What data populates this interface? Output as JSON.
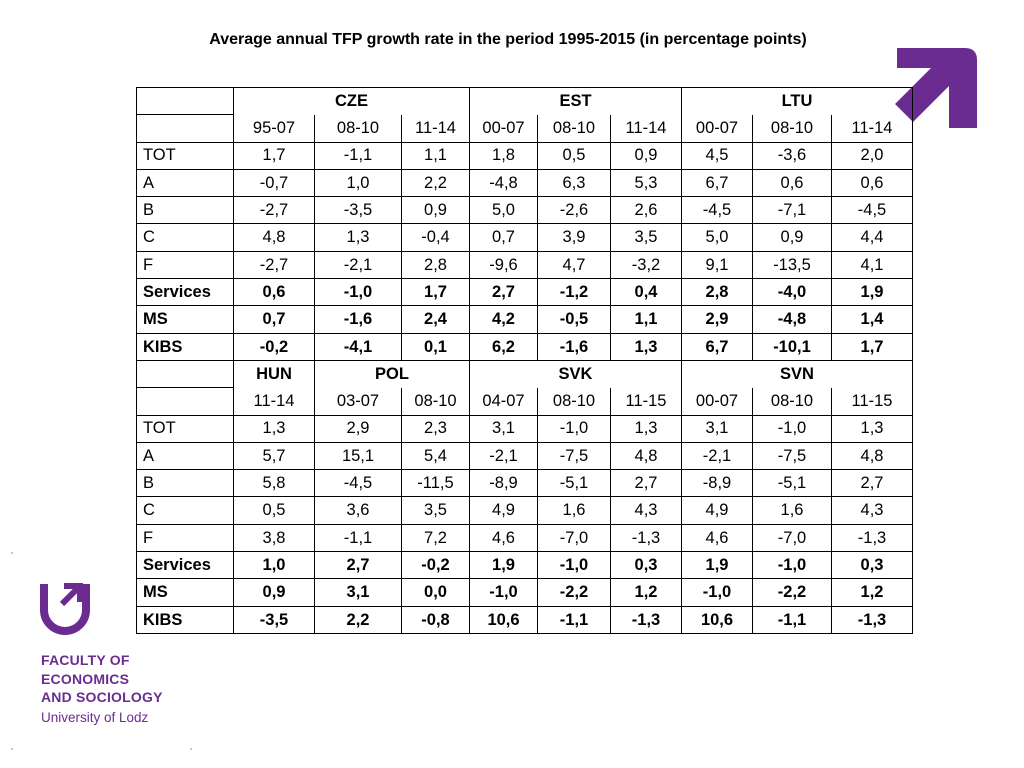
{
  "title": "Average annual TFP growth rate in the period 1995-2015 (in percentage points)",
  "table": {
    "panel1": {
      "groups": [
        {
          "name": "CZE",
          "periods": [
            "95-07",
            "08-10",
            "11-14"
          ]
        },
        {
          "name": "EST",
          "periods": [
            "00-07",
            "08-10",
            "11-14"
          ]
        },
        {
          "name": "LTU",
          "periods": [
            "00-07",
            "08-10",
            "11-14"
          ]
        }
      ],
      "rows": [
        {
          "label": "TOT",
          "values": [
            "1,7",
            "-1,1",
            "1,1",
            "1,8",
            "0,5",
            "0,9",
            "4,5",
            "-3,6",
            "2,0"
          ]
        },
        {
          "label": "A",
          "values": [
            "-0,7",
            "1,0",
            "2,2",
            "-4,8",
            "6,3",
            "5,3",
            "6,7",
            "0,6",
            "0,6"
          ]
        },
        {
          "label": "B",
          "values": [
            "-2,7",
            "-3,5",
            "0,9",
            "5,0",
            "-2,6",
            "2,6",
            "-4,5",
            "-7,1",
            "-4,5"
          ]
        },
        {
          "label": "C",
          "values": [
            "4,8",
            "1,3",
            "-0,4",
            "0,7",
            "3,9",
            "3,5",
            "5,0",
            "0,9",
            "4,4"
          ]
        },
        {
          "label": "F",
          "values": [
            "-2,7",
            "-2,1",
            "2,8",
            "-9,6",
            "4,7",
            "-3,2",
            "9,1",
            "-13,5",
            "4,1"
          ]
        },
        {
          "label": "Services",
          "values": [
            "0,6",
            "-1,0",
            "1,7",
            "2,7",
            "-1,2",
            "0,4",
            "2,8",
            "-4,0",
            "1,9"
          ]
        },
        {
          "label": "MS",
          "values": [
            "0,7",
            "-1,6",
            "2,4",
            "4,2",
            "-0,5",
            "1,1",
            "2,9",
            "-4,8",
            "1,4"
          ]
        },
        {
          "label": "KIBS",
          "values": [
            "-0,2",
            "-4,1",
            "0,1",
            "6,2",
            "-1,6",
            "1,3",
            "6,7",
            "-10,1",
            "1,7"
          ]
        }
      ]
    },
    "panel2": {
      "groups": [
        {
          "name": "HUN",
          "periods": [
            "11-14"
          ]
        },
        {
          "name": "POL",
          "periods": [
            "03-07",
            "08-10"
          ]
        },
        {
          "name": "SVK",
          "periods": [
            "04-07",
            "08-10",
            "11-15"
          ]
        },
        {
          "name": "SVN",
          "periods": [
            "00-07",
            "08-10",
            "11-15"
          ]
        }
      ],
      "rows": [
        {
          "label": "TOT",
          "values": [
            "1,3",
            "2,9",
            "2,3",
            "3,1",
            "-1,0",
            "1,3",
            "3,1",
            "-1,0",
            "1,3"
          ]
        },
        {
          "label": "A",
          "values": [
            "5,7",
            "15,1",
            "5,4",
            "-2,1",
            "-7,5",
            "4,8",
            "-2,1",
            "-7,5",
            "4,8"
          ]
        },
        {
          "label": "B",
          "values": [
            "5,8",
            "-4,5",
            "-11,5",
            "-8,9",
            "-5,1",
            "2,7",
            "-8,9",
            "-5,1",
            "2,7"
          ]
        },
        {
          "label": "C",
          "values": [
            "0,5",
            "3,6",
            "3,5",
            "4,9",
            "1,6",
            "4,3",
            "4,9",
            "1,6",
            "4,3"
          ]
        },
        {
          "label": "F",
          "values": [
            "3,8",
            "-1,1",
            "7,2",
            "4,6",
            "-7,0",
            "-1,3",
            "4,6",
            "-7,0",
            "-1,3"
          ]
        },
        {
          "label": "Services",
          "values": [
            "1,0",
            "2,7",
            "-0,2",
            "1,9",
            "-1,0",
            "0,3",
            "1,9",
            "-1,0",
            "0,3"
          ]
        },
        {
          "label": "MS",
          "values": [
            "0,9",
            "3,1",
            "0,0",
            "-1,0",
            "-2,2",
            "1,2",
            "-1,0",
            "-2,2",
            "1,2"
          ]
        },
        {
          "label": "KIBS",
          "values": [
            "-3,5",
            "2,2",
            "-0,8",
            "10,6",
            "-1,1",
            "-1,3",
            "10,6",
            "-1,1",
            "-1,3"
          ]
        }
      ]
    },
    "bold_rows": [
      "Services",
      "MS",
      "KIBS"
    ]
  },
  "branding": {
    "faculty_lines": [
      "FACULTY OF",
      "ECONOMICS",
      "AND SOCIOLOGY"
    ],
    "university": "University of Lodz",
    "brand_color": "#6b2c91",
    "icons": [
      "arrow-up-right-icon",
      "faculty-logo-icon"
    ]
  }
}
